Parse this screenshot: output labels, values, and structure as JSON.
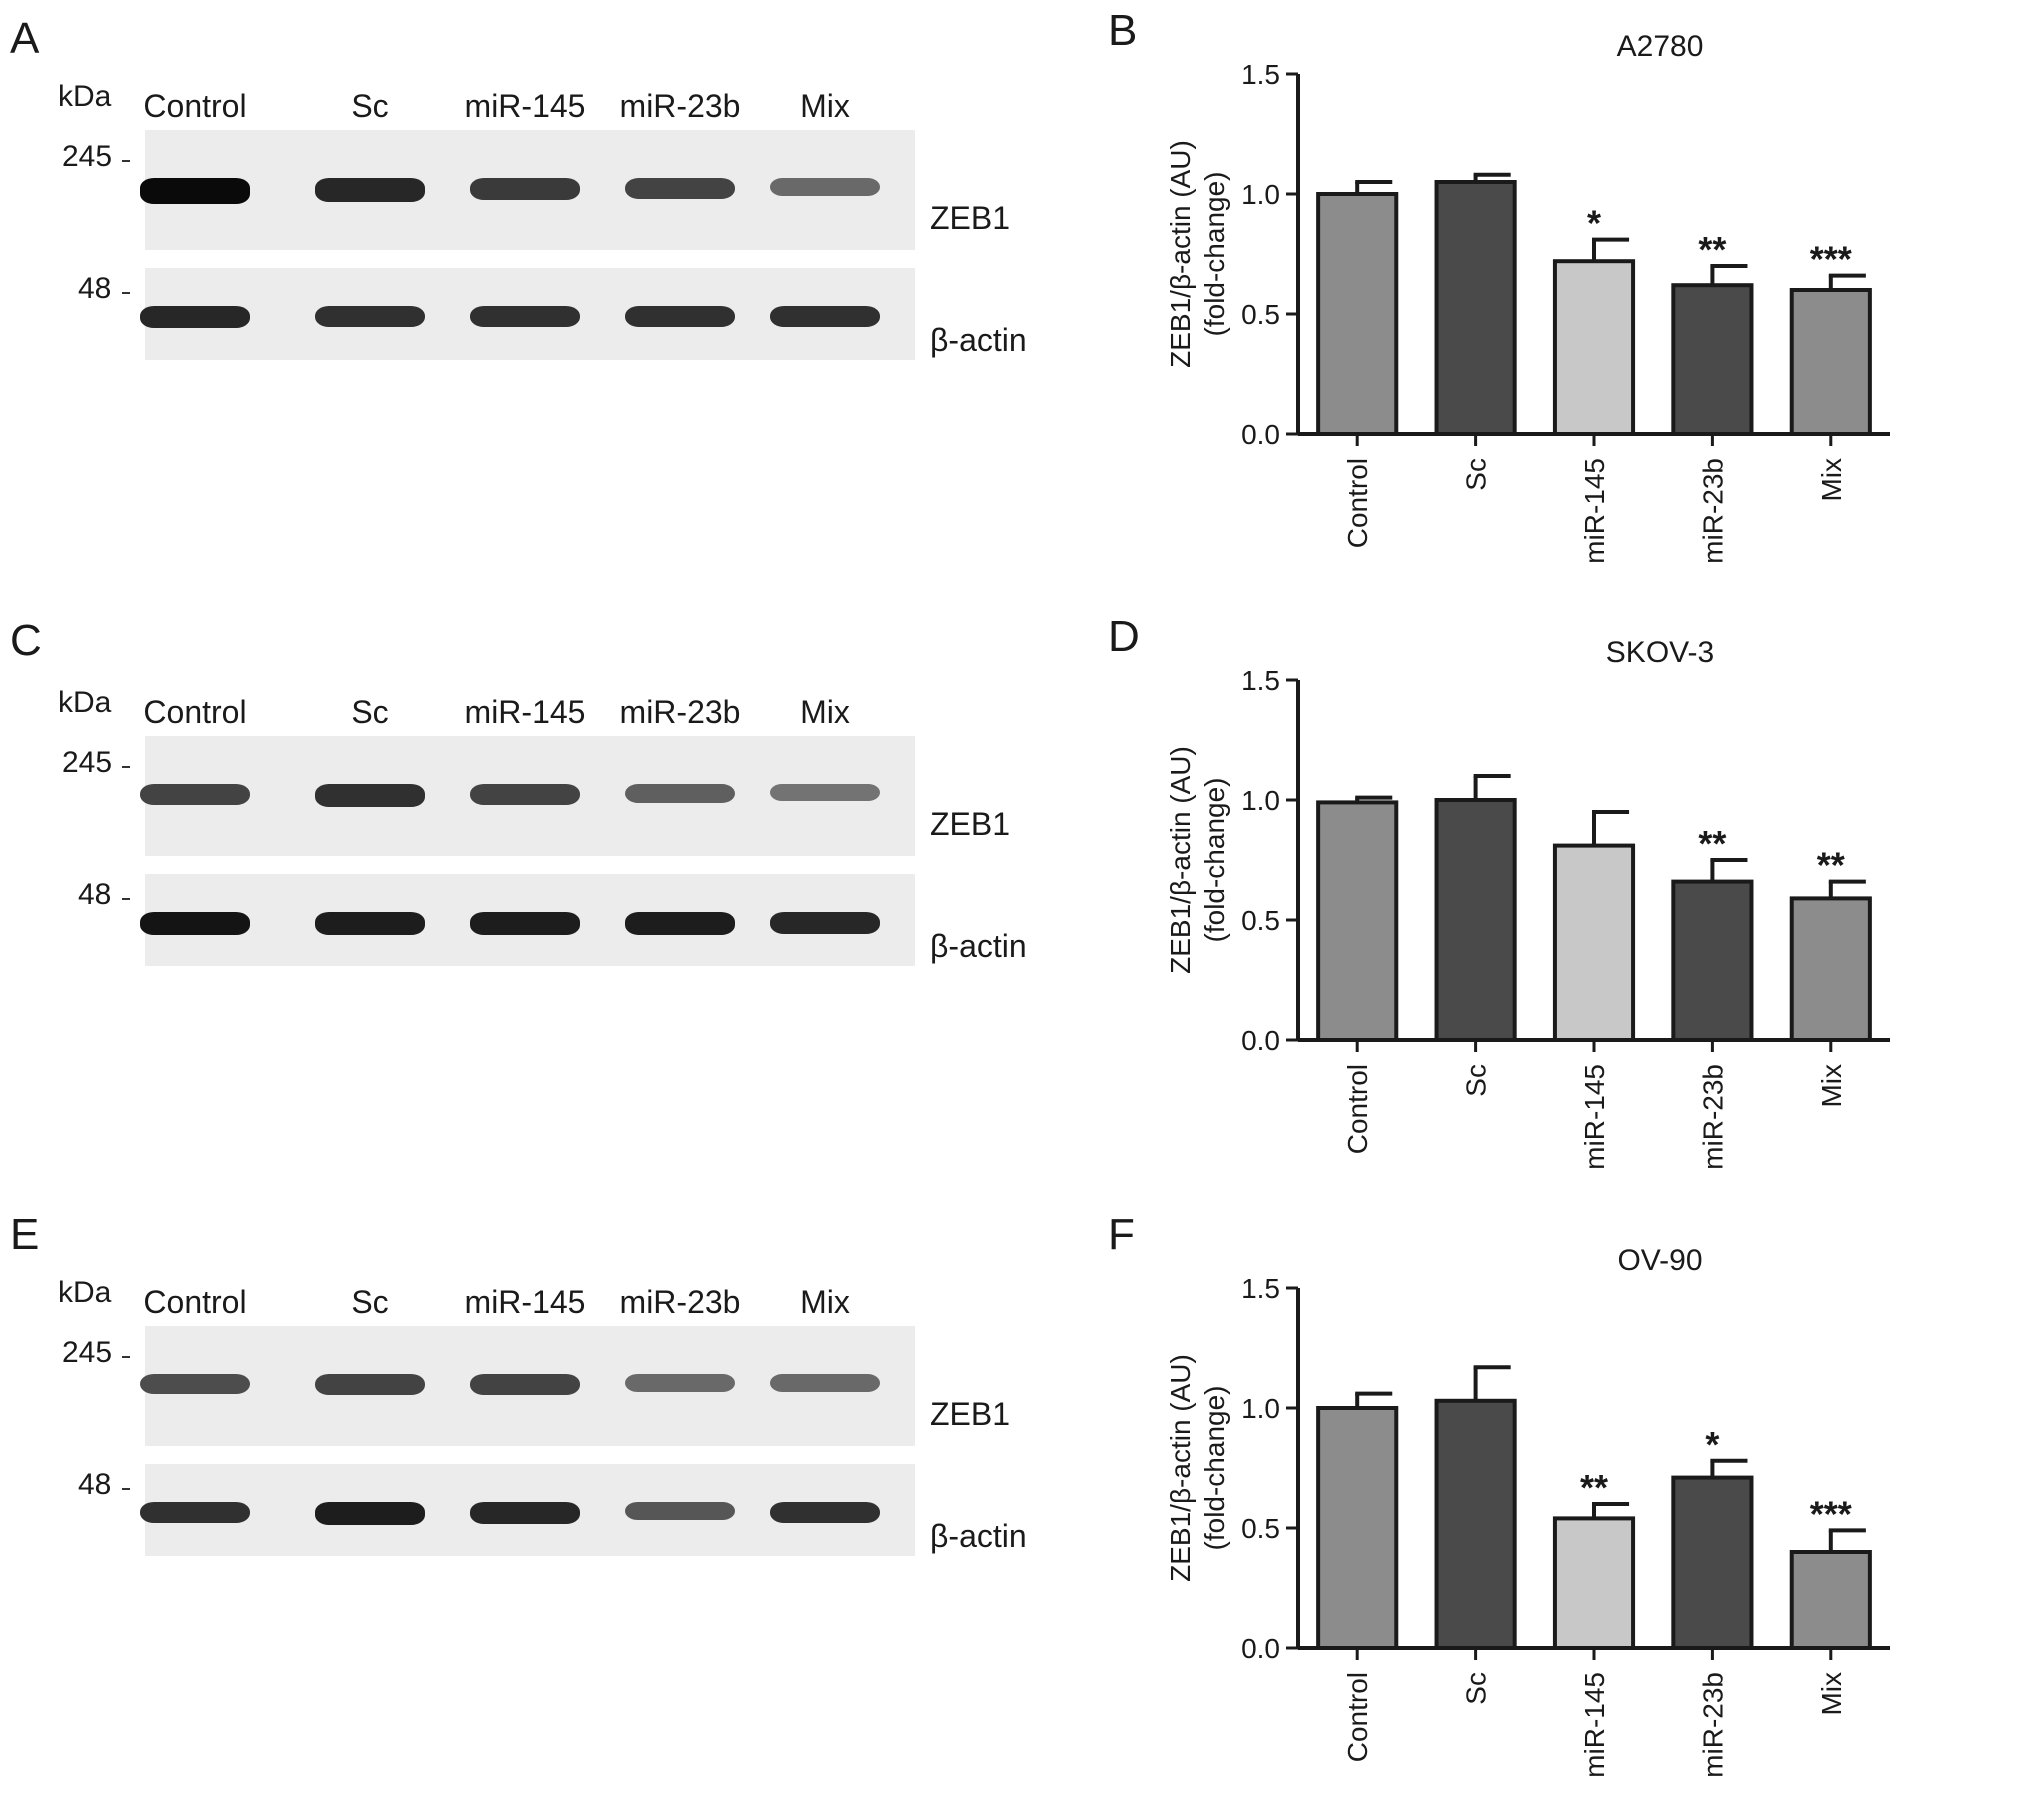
{
  "panels": {
    "A": "A",
    "B": "B",
    "C": "C",
    "D": "D",
    "E": "E",
    "F": "F"
  },
  "blots": [
    {
      "id": "A",
      "kda": "kDa",
      "lanes": [
        "Control",
        "Sc",
        "miR-145",
        "miR-23b",
        "Mix"
      ],
      "markers": [
        "245",
        "48"
      ],
      "proteins": [
        "ZEB1",
        "β-actin"
      ],
      "zeb1_intensity": [
        1.0,
        0.85,
        0.75,
        0.7,
        0.5
      ],
      "actin_intensity": [
        0.85,
        0.8,
        0.8,
        0.8,
        0.8
      ]
    },
    {
      "id": "C",
      "kda": "kDa",
      "lanes": [
        "Control",
        "Sc",
        "miR-145",
        "miR-23b",
        "Mix"
      ],
      "markers": [
        "245",
        "48"
      ],
      "proteins": [
        "ZEB1",
        "β-actin"
      ],
      "zeb1_intensity": [
        0.7,
        0.8,
        0.7,
        0.55,
        0.45
      ],
      "actin_intensity": [
        0.95,
        0.9,
        0.9,
        0.9,
        0.85
      ]
    },
    {
      "id": "E",
      "kda": "kDa",
      "lanes": [
        "Control",
        "Sc",
        "miR-145",
        "miR-23b",
        "Mix"
      ],
      "markers": [
        "245",
        "48"
      ],
      "proteins": [
        "ZEB1",
        "β-actin"
      ],
      "zeb1_intensity": [
        0.65,
        0.7,
        0.7,
        0.5,
        0.5
      ],
      "actin_intensity": [
        0.8,
        0.9,
        0.85,
        0.6,
        0.8
      ]
    }
  ],
  "chart_data": [
    {
      "type": "bar",
      "title": "A2780",
      "ylabel_line1": "ZEB1/β-actin (AU)",
      "ylabel_line2": "(fold-change)",
      "categories": [
        "Control",
        "Sc",
        "miR-145",
        "miR-23b",
        "Mix"
      ],
      "values": [
        1.0,
        1.05,
        0.72,
        0.62,
        0.6
      ],
      "errors": [
        0.05,
        0.03,
        0.09,
        0.08,
        0.06
      ],
      "significance": [
        "",
        "",
        "*",
        "**",
        "***"
      ],
      "ylim": [
        0,
        1.5
      ],
      "yticks": [
        "0.0",
        "0.5",
        "1.0",
        "1.5"
      ],
      "colors": [
        "#8c8c8c",
        "#4a4a4a",
        "#c8c8c8",
        "#4a4a4a",
        "#8c8c8c"
      ]
    },
    {
      "type": "bar",
      "title": "SKOV-3",
      "ylabel_line1": "ZEB1/β-actin (AU)",
      "ylabel_line2": "(fold-change)",
      "categories": [
        "Control",
        "Sc",
        "miR-145",
        "miR-23b",
        "Mix"
      ],
      "values": [
        0.99,
        1.0,
        0.81,
        0.66,
        0.59
      ],
      "errors": [
        0.02,
        0.1,
        0.14,
        0.09,
        0.07
      ],
      "significance": [
        "",
        "",
        "",
        "**",
        "**"
      ],
      "ylim": [
        0,
        1.5
      ],
      "yticks": [
        "0.0",
        "0.5",
        "1.0",
        "1.5"
      ],
      "colors": [
        "#8c8c8c",
        "#4a4a4a",
        "#c8c8c8",
        "#4a4a4a",
        "#8c8c8c"
      ]
    },
    {
      "type": "bar",
      "title": "OV-90",
      "ylabel_line1": "ZEB1/β-actin (AU)",
      "ylabel_line2": "(fold-change)",
      "categories": [
        "Control",
        "Sc",
        "miR-145",
        "miR-23b",
        "Mix"
      ],
      "values": [
        1.0,
        1.03,
        0.54,
        0.71,
        0.4
      ],
      "errors": [
        0.06,
        0.14,
        0.06,
        0.07,
        0.09
      ],
      "significance": [
        "",
        "",
        "**",
        "*",
        "***"
      ],
      "ylim": [
        0,
        1.5
      ],
      "yticks": [
        "0.0",
        "0.5",
        "1.0",
        "1.5"
      ],
      "colors": [
        "#8c8c8c",
        "#4a4a4a",
        "#c8c8c8",
        "#4a4a4a",
        "#8c8c8c"
      ]
    }
  ]
}
